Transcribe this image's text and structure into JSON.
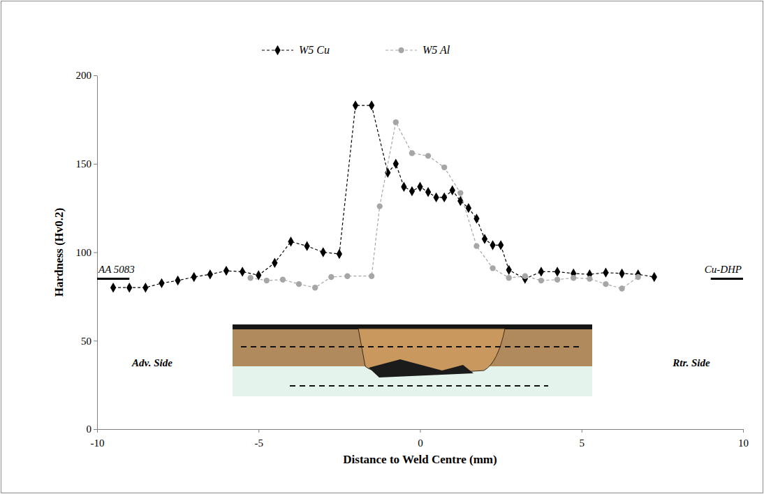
{
  "chart_data": {
    "type": "line",
    "x_label": "Distance to Weld Centre (mm)",
    "y_label": "Hardness (Hv0.2)",
    "xlim": [
      -10,
      10
    ],
    "xticks": [
      -10,
      -5,
      0,
      5,
      10
    ],
    "ylim": [
      0,
      200
    ],
    "yticks": [
      0,
      50,
      100,
      150,
      200
    ],
    "grid": false,
    "legend": "top",
    "series": [
      {
        "name": "W5 Cu",
        "color": "#000000",
        "marker": "diamond",
        "line_style": "dashed",
        "x": [
          -9.5,
          -9,
          -8.5,
          -8,
          -7.5,
          -7,
          -6.5,
          -6,
          -5.5,
          -5,
          -4.5,
          -4,
          -3.5,
          -3,
          -2.5,
          -2,
          -1.5,
          -1,
          -0.75,
          -0.5,
          -0.25,
          0,
          0.25,
          0.5,
          0.75,
          1,
          1.25,
          1.5,
          1.75,
          2,
          2.25,
          2.5,
          2.75,
          3.25,
          3.75,
          4.25,
          4.75,
          5.25,
          5.75,
          6.25,
          6.75,
          7.25
        ],
        "values": [
          80,
          80,
          80,
          82.5,
          84,
          86,
          87.5,
          89.5,
          89,
          87,
          94,
          106,
          103.5,
          100,
          99,
          183,
          183,
          145,
          150,
          137,
          134.5,
          137,
          134,
          131,
          131,
          135,
          129,
          125,
          119,
          107.5,
          104,
          104,
          90,
          85,
          89,
          89,
          88,
          87.5,
          88.5,
          88,
          87.5,
          86
        ]
      },
      {
        "name": "W5 Al",
        "color": "#a6a6a6",
        "marker": "circle",
        "line_style": "dashed",
        "x": [
          -5.25,
          -4.75,
          -4.25,
          -3.75,
          -3.25,
          -2.75,
          -2.25,
          -1.5,
          -1.25,
          -0.75,
          -0.25,
          0.25,
          0.75,
          1.25,
          1.75,
          2.25,
          2.75,
          3.25,
          3.75,
          4.25,
          4.75,
          5.25,
          5.75,
          6.25,
          6.75
        ],
        "values": [
          85.5,
          84,
          84.5,
          82,
          80,
          86,
          86.5,
          86.5,
          126,
          173.5,
          156,
          154.5,
          148,
          133.5,
          103.5,
          91,
          85.5,
          86.5,
          84,
          84.5,
          85.5,
          85,
          82,
          79.5,
          86
        ]
      }
    ],
    "annotations": [
      {
        "text": "AA 5083",
        "x": [
          -10,
          -9
        ],
        "y": 85
      },
      {
        "text": "Cu-DHP",
        "x": [
          9,
          10
        ],
        "y": 85
      }
    ],
    "side_labels": [
      "Adv. Side",
      "Rtr. Side"
    ]
  }
}
